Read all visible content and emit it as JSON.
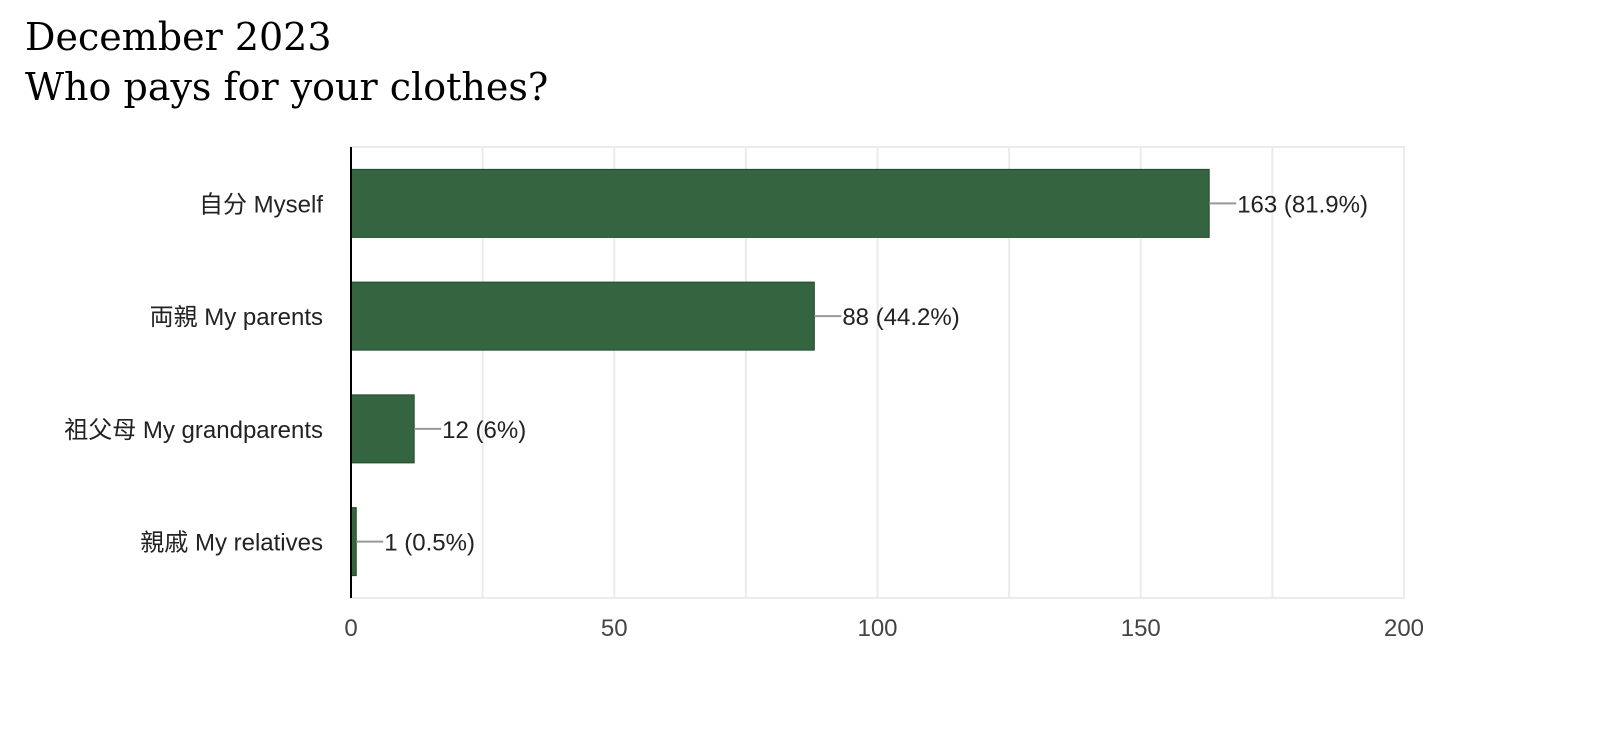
{
  "chart_data": {
    "type": "bar",
    "orientation": "horizontal",
    "title": "December 2023",
    "subtitle": "Who pays for your clothes?",
    "categories": [
      "自分 Myself",
      "両親 My parents",
      "祖父母 My grandparents",
      "親戚 My relatives"
    ],
    "values": [
      163,
      88,
      12,
      1
    ],
    "value_labels": [
      "163 (81.9%)",
      "88 (44.2%)",
      "12 (6%)",
      "1 (0.5%)"
    ],
    "xlim": [
      0,
      200
    ],
    "x_ticks": [
      0,
      50,
      100,
      150,
      200
    ],
    "x_tick_labels": [
      "0",
      "50",
      "100",
      "150",
      "200"
    ],
    "minor_gridlines": [
      25,
      75,
      125,
      175
    ],
    "grid": true,
    "bar_color": "#356440",
    "bar_edge_color": "#1f4a2a",
    "grid_color": "#ebebeb",
    "leader_line_color": "#999999"
  }
}
